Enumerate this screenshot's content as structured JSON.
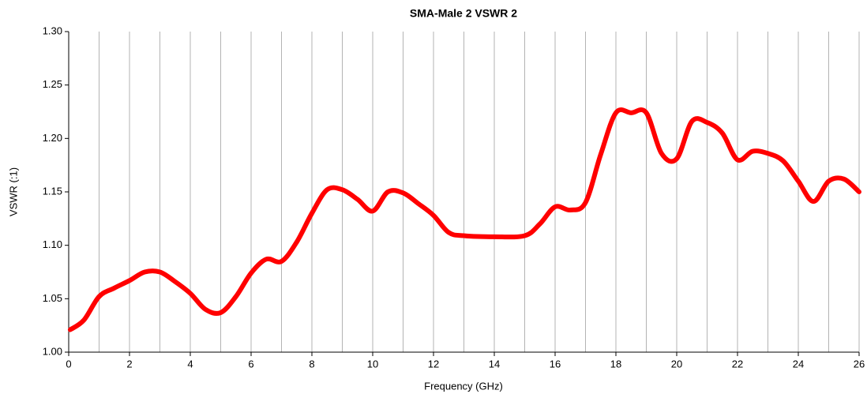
{
  "chart_data": {
    "type": "line",
    "title": "SMA-Male 2 VSWR 2",
    "x_label": "Frequency (GHz)",
    "y_label": "VSWR (:1)",
    "x": [
      0.05,
      0.5,
      1,
      1.5,
      2,
      2.5,
      3,
      3.5,
      4,
      4.5,
      5,
      5.5,
      6,
      6.5,
      7,
      7.5,
      8,
      8.5,
      9,
      9.5,
      10,
      10.5,
      11,
      11.5,
      12,
      12.5,
      13,
      14,
      15,
      15.5,
      16,
      16.5,
      17,
      17.5,
      18,
      18.5,
      19,
      19.5,
      20,
      20.5,
      21,
      21.5,
      22,
      22.5,
      23,
      23.5,
      24,
      24.5,
      25,
      25.5,
      26
    ],
    "series": [
      {
        "name": "VSWR",
        "color": "#ff0000",
        "values": [
          1.021,
          1.03,
          1.052,
          1.06,
          1.067,
          1.075,
          1.075,
          1.066,
          1.055,
          1.04,
          1.037,
          1.052,
          1.074,
          1.087,
          1.085,
          1.103,
          1.13,
          1.152,
          1.152,
          1.143,
          1.132,
          1.15,
          1.149,
          1.139,
          1.128,
          1.112,
          1.109,
          1.108,
          1.109,
          1.12,
          1.136,
          1.133,
          1.14,
          1.185,
          1.224,
          1.224,
          1.224,
          1.186,
          1.181,
          1.216,
          1.215,
          1.205,
          1.18,
          1.188,
          1.186,
          1.179,
          1.16,
          1.141,
          1.16,
          1.162,
          1.15
        ]
      }
    ],
    "xlim": [
      0,
      26
    ],
    "xticks": [
      0,
      2,
      4,
      6,
      8,
      10,
      12,
      14,
      16,
      18,
      20,
      22,
      24,
      26
    ],
    "ylim": [
      1.0,
      1.3
    ],
    "yticks": [
      {
        "value": 1.0,
        "label": "1.00"
      },
      {
        "value": 1.05,
        "label": "1.05"
      },
      {
        "value": 1.1,
        "label": "1.10"
      },
      {
        "value": 1.15,
        "label": "1.15"
      },
      {
        "value": 1.2,
        "label": "1.20"
      },
      {
        "value": 1.25,
        "label": "1.25"
      },
      {
        "value": 1.3,
        "label": "1.30"
      }
    ],
    "x_grid": true,
    "x_minor_grid": true,
    "y_grid": false,
    "legend": false
  }
}
